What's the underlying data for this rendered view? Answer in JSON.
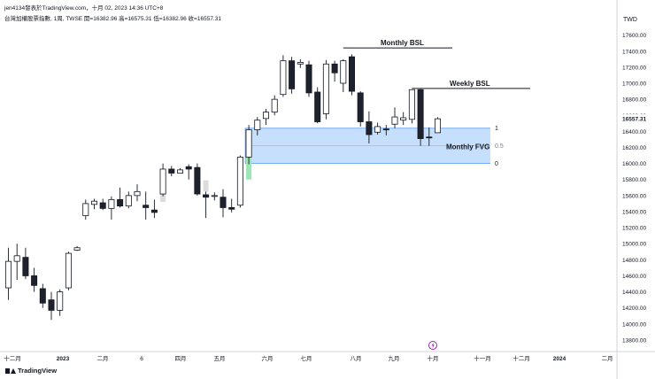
{
  "header": {
    "line1": "jen4134發表於TradingView.com，十月 02, 2023 14:36 UTC+8",
    "line2": "台灣加權股票指數, 1周, TWSE  開=16382.96  高=16575.31  低=16382.96  收=16557.31"
  },
  "brand": {
    "name": "TradingView",
    "icon": "tradingview-logo-icon"
  },
  "colors": {
    "bull_body": "#ffffff",
    "bear_body": "#1e222d",
    "wick": "#131722",
    "fvg_fill": "#bbd9fb",
    "fvg_border": "#5b9cf6",
    "highlight_green": "#9be6b4",
    "highlight_grey": "#dcdcdc",
    "last_price": "#131722",
    "event_icon": "#9c27b0"
  },
  "chart_data": {
    "type": "candlestick",
    "title": "台灣加權股票指數, 1周, TWSE",
    "currency": "TWD",
    "ylim": [
      13700,
      17850
    ],
    "y_ticks": [
      13800,
      14000,
      14200,
      14400,
      14600,
      14800,
      15000,
      15200,
      15400,
      15600,
      15800,
      16000,
      16200,
      16400,
      16600,
      16800,
      17000,
      17200,
      17400,
      17600
    ],
    "x_labels": [
      "十二月",
      "2023",
      "二月",
      "6",
      "四月",
      "五月",
      "六月",
      "七月",
      "八月",
      "九月",
      "十月",
      "十一月",
      "十二月",
      "2024",
      "二月"
    ],
    "last_price": "16557.31",
    "candles": [
      {
        "o": 14450,
        "h": 14950,
        "l": 14300,
        "c": 14780
      },
      {
        "o": 14780,
        "h": 15000,
        "l": 14550,
        "c": 14850
      },
      {
        "o": 14830,
        "h": 14950,
        "l": 14560,
        "c": 14600
      },
      {
        "o": 14600,
        "h": 14700,
        "l": 14400,
        "c": 14480
      },
      {
        "o": 14440,
        "h": 14500,
        "l": 14200,
        "c": 14260
      },
      {
        "o": 14300,
        "h": 14400,
        "l": 14050,
        "c": 14170
      },
      {
        "o": 14170,
        "h": 14430,
        "l": 14100,
        "c": 14400
      },
      {
        "o": 14450,
        "h": 14900,
        "l": 14420,
        "c": 14880
      },
      {
        "o": 14920,
        "h": 14970,
        "l": 14910,
        "c": 14950
      },
      {
        "o": 15350,
        "h": 15550,
        "l": 15300,
        "c": 15500
      },
      {
        "o": 15490,
        "h": 15560,
        "l": 15430,
        "c": 15530
      },
      {
        "o": 15510,
        "h": 15560,
        "l": 15420,
        "c": 15440
      },
      {
        "o": 15440,
        "h": 15590,
        "l": 15300,
        "c": 15550
      },
      {
        "o": 15550,
        "h": 15700,
        "l": 15450,
        "c": 15470
      },
      {
        "o": 15470,
        "h": 15650,
        "l": 15440,
        "c": 15600
      },
      {
        "o": 15600,
        "h": 15740,
        "l": 15530,
        "c": 15650
      },
      {
        "o": 15480,
        "h": 15650,
        "l": 15300,
        "c": 15450
      },
      {
        "o": 15420,
        "h": 15550,
        "l": 15320,
        "c": 15390
      },
      {
        "o": 15620,
        "h": 16000,
        "l": 15590,
        "c": 15930
      },
      {
        "o": 15930,
        "h": 15970,
        "l": 15840,
        "c": 15880
      },
      {
        "o": 15880,
        "h": 15940,
        "l": 15880,
        "c": 15920
      },
      {
        "o": 15960,
        "h": 15990,
        "l": 15800,
        "c": 15930
      },
      {
        "o": 15950,
        "h": 16000,
        "l": 15600,
        "c": 15620
      },
      {
        "o": 15610,
        "h": 15650,
        "l": 15320,
        "c": 15580
      },
      {
        "o": 15600,
        "h": 15640,
        "l": 15540,
        "c": 15600
      },
      {
        "o": 15580,
        "h": 15680,
        "l": 15330,
        "c": 15450
      },
      {
        "o": 15450,
        "h": 15560,
        "l": 15390,
        "c": 15430
      },
      {
        "o": 15480,
        "h": 16100,
        "l": 15450,
        "c": 16080
      },
      {
        "o": 16080,
        "h": 16480,
        "l": 15990,
        "c": 16420
      },
      {
        "o": 16420,
        "h": 16580,
        "l": 16350,
        "c": 16540
      },
      {
        "o": 16560,
        "h": 16680,
        "l": 16480,
        "c": 16640
      },
      {
        "o": 16640,
        "h": 16850,
        "l": 16600,
        "c": 16800
      },
      {
        "o": 16860,
        "h": 17350,
        "l": 16830,
        "c": 17280
      },
      {
        "o": 17280,
        "h": 17330,
        "l": 16870,
        "c": 16930
      },
      {
        "o": 17240,
        "h": 17300,
        "l": 17190,
        "c": 17260
      },
      {
        "o": 17230,
        "h": 17280,
        "l": 16830,
        "c": 16880
      },
      {
        "o": 16890,
        "h": 16950,
        "l": 16500,
        "c": 16520
      },
      {
        "o": 16620,
        "h": 17290,
        "l": 16550,
        "c": 17240
      },
      {
        "o": 17240,
        "h": 17280,
        "l": 17020,
        "c": 17130
      },
      {
        "o": 17000,
        "h": 17300,
        "l": 16890,
        "c": 17280
      },
      {
        "o": 17330,
        "h": 17360,
        "l": 16850,
        "c": 16900
      },
      {
        "o": 16880,
        "h": 16900,
        "l": 16460,
        "c": 16520
      },
      {
        "o": 16520,
        "h": 16650,
        "l": 16250,
        "c": 16360
      },
      {
        "o": 16390,
        "h": 16510,
        "l": 16360,
        "c": 16460
      },
      {
        "o": 16430,
        "h": 16480,
        "l": 16350,
        "c": 16420
      },
      {
        "o": 16490,
        "h": 16700,
        "l": 16440,
        "c": 16580
      },
      {
        "o": 16540,
        "h": 16640,
        "l": 16480,
        "c": 16570
      },
      {
        "o": 16550,
        "h": 16920,
        "l": 16500,
        "c": 16920
      },
      {
        "o": 16920,
        "h": 16930,
        "l": 16220,
        "c": 16310
      },
      {
        "o": 16330,
        "h": 16450,
        "l": 16220,
        "c": 16320
      },
      {
        "o": 16383,
        "h": 16575,
        "l": 16383,
        "c": 16557
      }
    ],
    "annotations": {
      "monthly_bsl": {
        "label": "Monthly BSL",
        "price": 17440
      },
      "weekly_bsl": {
        "label": "Weekly BSL",
        "price": 16935
      },
      "monthly_fvg": {
        "label": "Monthly FVG",
        "top": 16440,
        "bottom": 16000,
        "levels": [
          "1",
          "0.5",
          "0"
        ]
      }
    }
  }
}
